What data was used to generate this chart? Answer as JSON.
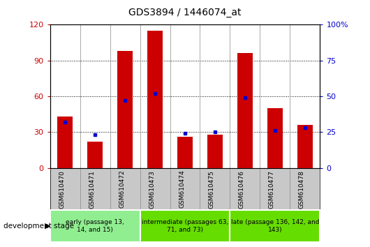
{
  "title": "GDS3894 / 1446074_at",
  "samples": [
    "GSM610470",
    "GSM610471",
    "GSM610472",
    "GSM610473",
    "GSM610474",
    "GSM610475",
    "GSM610476",
    "GSM610477",
    "GSM610478"
  ],
  "counts": [
    43,
    22,
    98,
    115,
    26,
    28,
    96,
    50,
    36
  ],
  "percentile_ranks": [
    32,
    23,
    47,
    52,
    24,
    25,
    49,
    26,
    28
  ],
  "ylim_left": [
    0,
    120
  ],
  "ylim_right": [
    0,
    100
  ],
  "yticks_left": [
    0,
    30,
    60,
    90,
    120
  ],
  "yticks_right": [
    0,
    25,
    50,
    75,
    100
  ],
  "ytick_labels_left": [
    "0",
    "30",
    "60",
    "90",
    "120"
  ],
  "ytick_labels_right": [
    "0",
    "25",
    "50",
    "75",
    "100%"
  ],
  "group_texts": [
    "early (passage 13,\n14, and 15)",
    "intermediate (passages 63,\n71, and 73)",
    "late (passage 136, 142, and\n143)"
  ],
  "group_starts": [
    0,
    3,
    6
  ],
  "group_ends": [
    3,
    6,
    9
  ],
  "group_colors": [
    "#90EE90",
    "#66DD00",
    "#66DD00"
  ],
  "bar_color": "#CC0000",
  "marker_color": "#0000CC",
  "bar_width": 0.5,
  "plot_bg_color": "#FFFFFF",
  "tick_area_bg": "#C8C8C8",
  "sample_label_fontsize": 6.5,
  "title_fontsize": 10,
  "legend_count_color": "#CC0000",
  "legend_pct_color": "#0000CC"
}
